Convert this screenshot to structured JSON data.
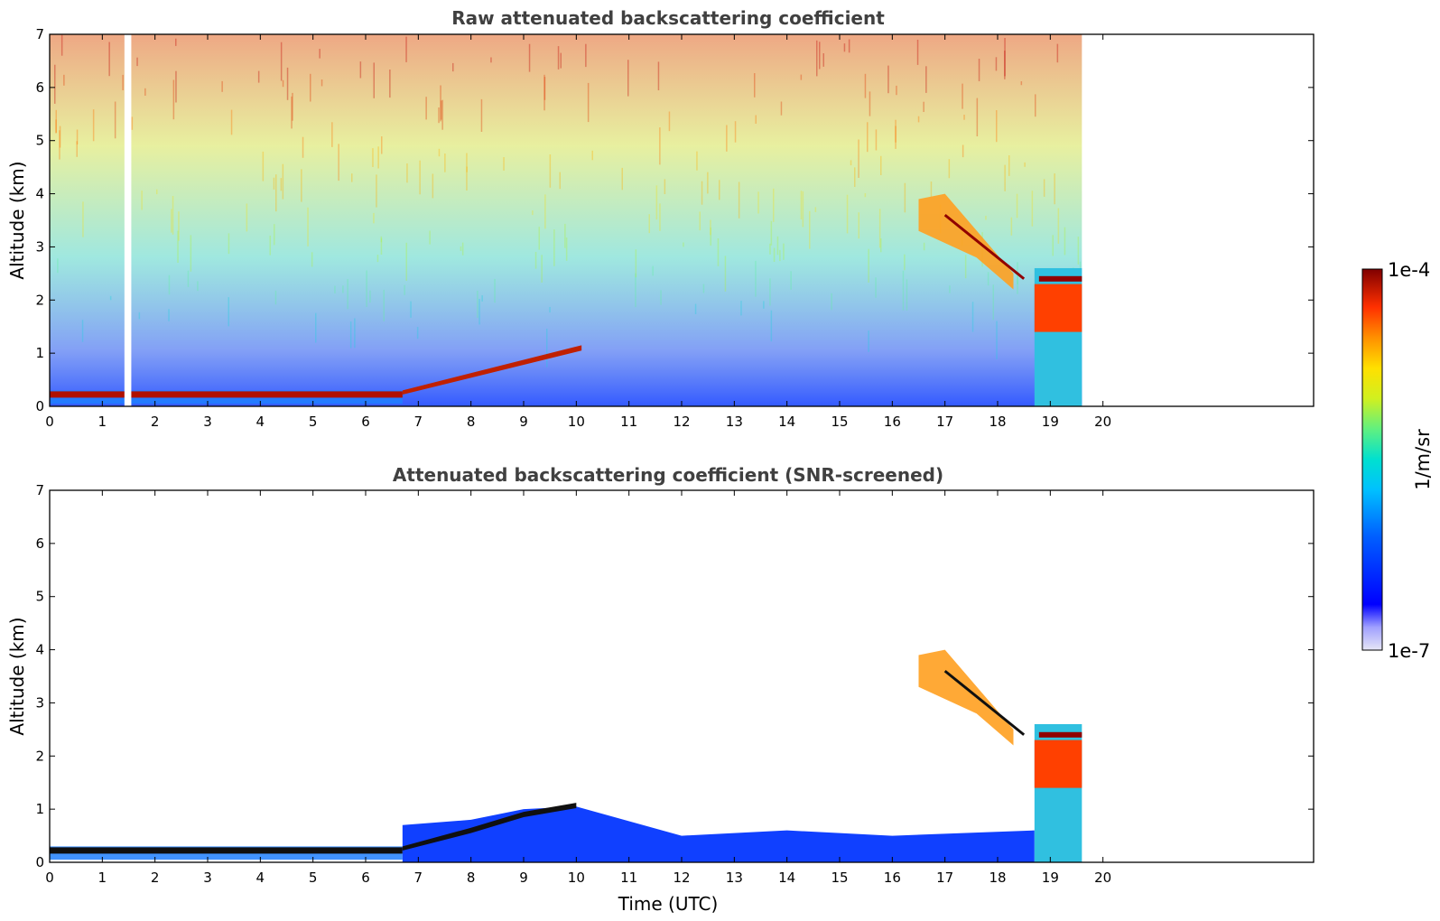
{
  "chart_data": [
    {
      "type": "heatmap",
      "title": "Raw attenuated backscattering coefficient",
      "xlabel": "",
      "ylabel": "Altitude (km)",
      "xlim": [
        0,
        24
      ],
      "ylim": [
        0,
        7
      ],
      "xticks": [
        "0",
        "1",
        "2",
        "3",
        "4",
        "5",
        "6",
        "7",
        "8",
        "9",
        "10",
        "11",
        "12",
        "13",
        "14",
        "15",
        "16",
        "17",
        "18",
        "19",
        "20"
      ],
      "yticks": [
        "0",
        "1",
        "2",
        "3",
        "4",
        "5",
        "6",
        "7"
      ],
      "data_end_hour": 19.6,
      "features": [
        {
          "kind": "noise",
          "x": [
            0,
            19.6
          ],
          "y": [
            0,
            7
          ],
          "note": "noisy high-altitude signal"
        },
        {
          "kind": "boundary_layer",
          "x": [
            0,
            6.7
          ],
          "y": [
            0.1,
            0.35
          ]
        },
        {
          "kind": "rising_layer",
          "x": [
            6.7,
            10.1
          ],
          "y": [
            0.3,
            1.15
          ]
        },
        {
          "kind": "cloud",
          "x": [
            16.5,
            18.3
          ],
          "y": [
            2.2,
            4.0
          ]
        },
        {
          "kind": "cloud",
          "x": [
            18.7,
            19.6
          ],
          "y": [
            0.0,
            2.6
          ]
        },
        {
          "kind": "gap",
          "x": [
            1.42,
            1.55
          ],
          "y": [
            0,
            7
          ]
        }
      ]
    },
    {
      "type": "heatmap",
      "title": "Attenuated backscattering coefficient (SNR-screened)",
      "xlabel": "Time (UTC)",
      "ylabel": "Altitude (km)",
      "xlim": [
        0,
        24
      ],
      "ylim": [
        0,
        7
      ],
      "xticks": [
        "0",
        "1",
        "2",
        "3",
        "4",
        "5",
        "6",
        "7",
        "8",
        "9",
        "10",
        "11",
        "12",
        "13",
        "14",
        "15",
        "16",
        "17",
        "18",
        "19",
        "20"
      ],
      "yticks": [
        "0",
        "1",
        "2",
        "3",
        "4",
        "5",
        "6",
        "7"
      ],
      "data_end_hour": 19.6,
      "features": [
        {
          "kind": "boundary_layer",
          "x": [
            0,
            6.7
          ],
          "y": [
            0.1,
            0.35
          ]
        },
        {
          "kind": "screened_low_signal",
          "x": [
            6.7,
            18.7
          ],
          "y": [
            0,
            1.0
          ]
        },
        {
          "kind": "cloud",
          "x": [
            16.5,
            18.3
          ],
          "y": [
            2.2,
            4.0
          ]
        },
        {
          "kind": "cloud",
          "x": [
            18.7,
            19.6
          ],
          "y": [
            0.0,
            2.6
          ]
        }
      ]
    }
  ],
  "colorbar": {
    "min_label": "1e-7",
    "max_label": "1e-4",
    "unit": "1/m/sr",
    "colors": [
      "#e6e6f5",
      "#c8c8f0",
      "#a0a0ff",
      "#5050ff",
      "#0000ff",
      "#0040ff",
      "#0080ff",
      "#00c0ff",
      "#00e0e0",
      "#40f0a0",
      "#a0f060",
      "#e0f020",
      "#ffe000",
      "#ffa000",
      "#ff5000",
      "#e00000",
      "#800000"
    ]
  }
}
